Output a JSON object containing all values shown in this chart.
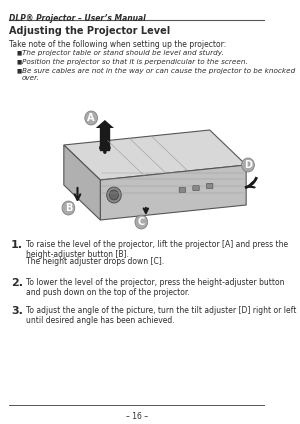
{
  "bg_color": "#ffffff",
  "header_text": "DLP® Projector – User’s Manual",
  "header_bold": false,
  "section_title": "Adjusting the Projector Level",
  "intro_text": "Take note of the following when setting up the projector:",
  "bullets": [
    "The projector table or stand should be level and sturdy.",
    "Position the projector so that it is perpendicular to the screen.",
    "Be sure cables are not in the way or can cause the projector to be knocked over."
  ],
  "step1_num": "1.",
  "step1_text": "To raise the level of the projector, lift the projector [A] and press the height-adjuster button [B].",
  "step1_sub": "The height adjuster drops down [C].",
  "step2_num": "2.",
  "step2_text": "To lower the level of the projector, press the height-adjuster button and push down on the top of the projector.",
  "step3_num": "3.",
  "step3_text": "To adjust the angle of the picture, turn the tilt adjuster [D] right or left until desired angle has been achieved.",
  "footer_line": true,
  "footer_text": "– 16 –",
  "label_A": "A",
  "label_B": "B",
  "label_C": "C",
  "label_D": "D",
  "text_color": "#2d2d2d",
  "line_color": "#555555",
  "label_bg": "#aaaaaa",
  "arrow_color": "#1a1a1a"
}
